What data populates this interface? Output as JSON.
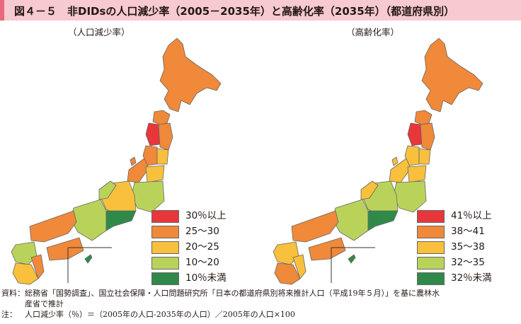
{
  "title": "図４－５　非DIDsの人口減少率（2005－2035年）と高齢化率（2035年）（都道府県別）",
  "maps": [
    {
      "label": "（人口減少率）",
      "legend": [
        {
          "label": "30％以上",
          "color": "#e8363b"
        },
        {
          "label": "25～30",
          "color": "#f0893a"
        },
        {
          "label": "20～25",
          "color": "#f8c03c"
        },
        {
          "label": "10～20",
          "color": "#b9d35a"
        },
        {
          "label": "10％未満",
          "color": "#2f8a4a"
        }
      ]
    },
    {
      "label": "（高齢化率）",
      "legend": [
        {
          "label": "41％以上",
          "color": "#e8363b"
        },
        {
          "label": "38～41",
          "color": "#f0893a"
        },
        {
          "label": "35～38",
          "color": "#f8c03c"
        },
        {
          "label": "32～35",
          "color": "#b9d35a"
        },
        {
          "label": "32％未満",
          "color": "#2f8a4a"
        }
      ]
    }
  ],
  "notes": {
    "source_head": "資料：",
    "source_line1": "総務省「国勢調査」、国立社会保障・人口問題研究所「日本の都道府県別将来推計人口（平成19年５月）」を基に農林水",
    "source_line2": "産省で推計",
    "note_head": "注：",
    "note_line1": "人口減少率（％）＝（2005年の人口-2035年の人口）／2005年の人口×100"
  }
}
